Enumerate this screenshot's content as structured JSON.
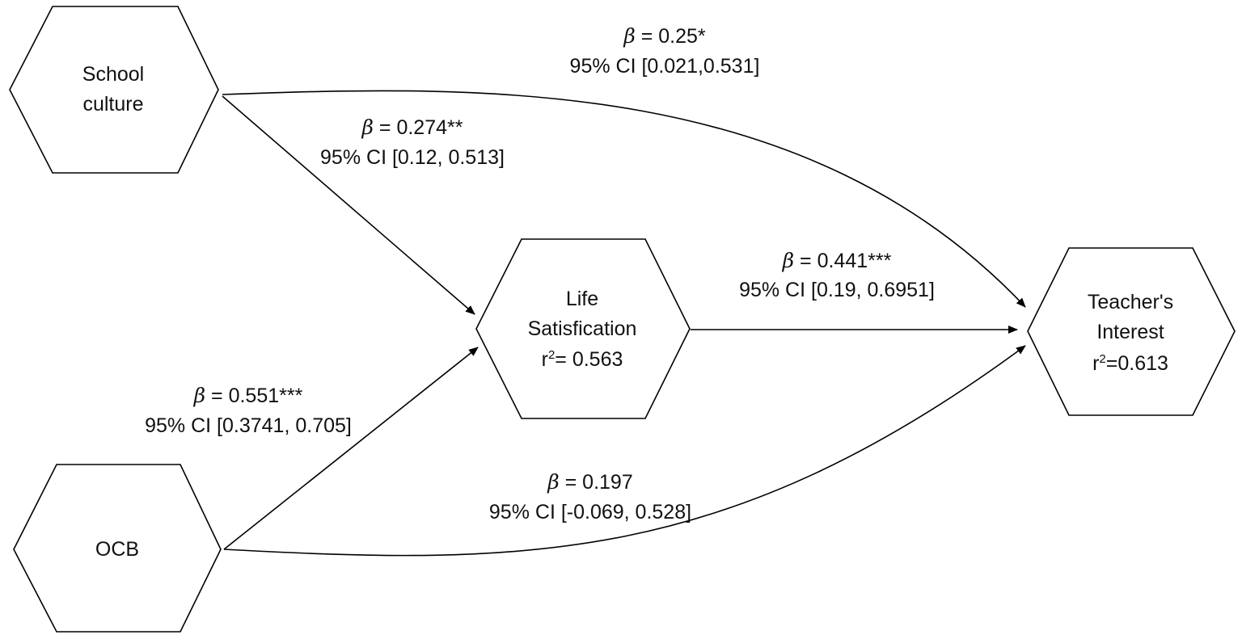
{
  "nodes": {
    "school_culture": {
      "line1": "School",
      "line2": "culture"
    },
    "ocb": {
      "line1": "OCB"
    },
    "life_satisfaction": {
      "line1": "Life",
      "line2": "Satisfication",
      "r_prefix": "r",
      "r_sup": "2",
      "r_value": "= 0.563"
    },
    "teachers_interest": {
      "line1": "Teacher's",
      "line2": "Interest",
      "r_prefix": "r",
      "r_sup": "2",
      "r_value": "=0.613"
    }
  },
  "edges": {
    "sc_to_ti": {
      "beta_symbol": "β",
      "beta_text": " = 0.25*",
      "ci": "95% CI [0.021,0.531]"
    },
    "sc_to_ls": {
      "beta_symbol": "β",
      "beta_text": " = 0.274**",
      "ci": "95% CI [0.12, 0.513]"
    },
    "ls_to_ti": {
      "beta_symbol": "β",
      "beta_text": " = 0.441***",
      "ci": "95% CI [0.19, 0.6951]"
    },
    "ocb_to_ls": {
      "beta_symbol": "β",
      "beta_text": " = 0.551***",
      "ci": "95% CI [0.3741, 0.705]"
    },
    "ocb_to_ti": {
      "beta_symbol": "β",
      "beta_text": " = 0.197",
      "ci": "95% CI [-0.069, 0.528]"
    }
  },
  "colors": {
    "stroke": "#000000",
    "text": "#111111",
    "background": "#ffffff"
  }
}
